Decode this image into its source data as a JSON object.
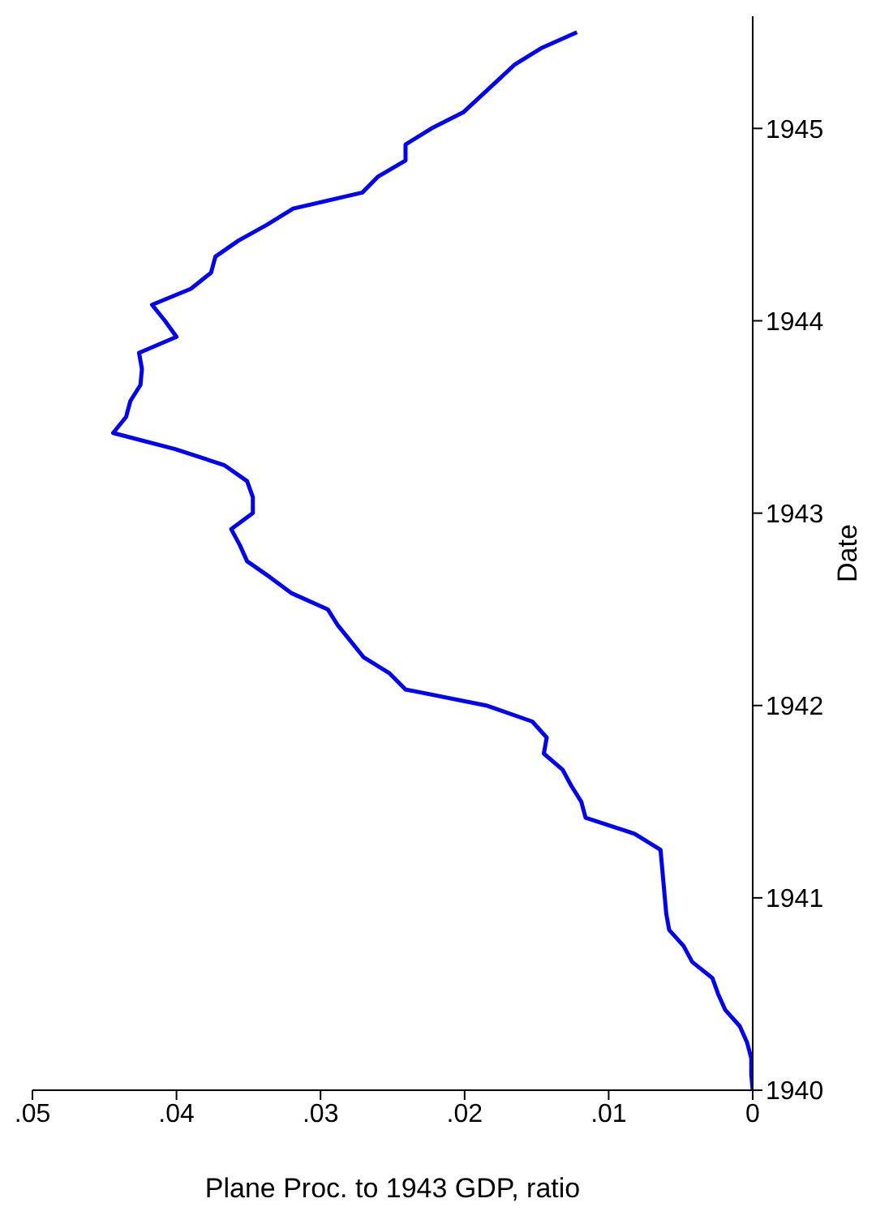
{
  "chart_data": {
    "type": "line",
    "orientation": "horizontal",
    "xlabel": "Plane Proc. to 1943 GDP, ratio",
    "ylabel": "Date",
    "x": [
      "1940-01",
      "1940-02",
      "1940-03",
      "1940-04",
      "1940-05",
      "1940-06",
      "1940-07",
      "1940-08",
      "1940-09",
      "1940-10",
      "1940-11",
      "1940-12",
      "1941-01",
      "1941-02",
      "1941-03",
      "1941-04",
      "1941-05",
      "1941-06",
      "1941-07",
      "1941-08",
      "1941-09",
      "1941-10",
      "1941-11",
      "1941-12",
      "1942-01",
      "1942-02",
      "1942-03",
      "1942-04",
      "1942-05",
      "1942-06",
      "1942-07",
      "1942-08",
      "1942-09",
      "1942-10",
      "1942-11",
      "1942-12",
      "1943-01",
      "1943-02",
      "1943-03",
      "1943-04",
      "1943-05",
      "1943-06",
      "1943-07",
      "1943-08",
      "1943-09",
      "1943-10",
      "1943-11",
      "1943-12",
      "1944-01",
      "1944-02",
      "1944-03",
      "1944-04",
      "1944-05",
      "1944-06",
      "1944-07",
      "1944-08",
      "1944-09",
      "1944-10",
      "1944-11",
      "1944-12",
      "1945-01",
      "1945-02",
      "1945-03",
      "1945-04",
      "1945-05",
      "1945-06",
      "1945-07"
    ],
    "series": [
      {
        "color": "#0000ff",
        "values": [
          0.0,
          0.0001,
          0.0001,
          0.0004,
          0.0009,
          0.0019,
          0.0024,
          0.0028,
          0.0042,
          0.0048,
          0.0058,
          0.006,
          0.0061,
          0.0062,
          0.0063,
          0.0064,
          0.0082,
          0.0116,
          0.0119,
          0.0126,
          0.0132,
          0.0145,
          0.0143,
          0.0153,
          0.0185,
          0.0241,
          0.0252,
          0.027,
          0.0279,
          0.0288,
          0.0295,
          0.032,
          0.0335,
          0.0351,
          0.0356,
          0.0362,
          0.0347,
          0.0347,
          0.0351,
          0.0367,
          0.0401,
          0.0444,
          0.0435,
          0.0432,
          0.0425,
          0.0424,
          0.0426,
          0.04,
          0.0408,
          0.0417,
          0.039,
          0.0376,
          0.0373,
          0.0357,
          0.0337,
          0.0319,
          0.0271,
          0.026,
          0.0241,
          0.0241,
          0.0223,
          0.0201,
          0.0189,
          0.0177,
          0.0165,
          0.0147,
          0.0122
        ]
      }
    ],
    "ylim": [
      "1940-01",
      "1945-08"
    ],
    "yticks": [
      {
        "value": "1940-01",
        "label": "1940"
      },
      {
        "value": "1941-01",
        "label": "1941"
      },
      {
        "value": "1942-01",
        "label": "1942"
      },
      {
        "value": "1943-01",
        "label": "1943"
      },
      {
        "value": "1944-01",
        "label": "1944"
      },
      {
        "value": "1945-01",
        "label": "1945"
      }
    ],
    "xlim": [
      0.05,
      0
    ],
    "xticks": [
      {
        "value": 0.05,
        "label": ".05"
      },
      {
        "value": 0.04,
        "label": ".04"
      },
      {
        "value": 0.03,
        "label": ".03"
      },
      {
        "value": 0.02,
        "label": ".02"
      },
      {
        "value": 0.01,
        "label": ".01"
      },
      0
    ],
    "grid": false,
    "legend": false,
    "marker": "none",
    "line_style": "solid"
  }
}
